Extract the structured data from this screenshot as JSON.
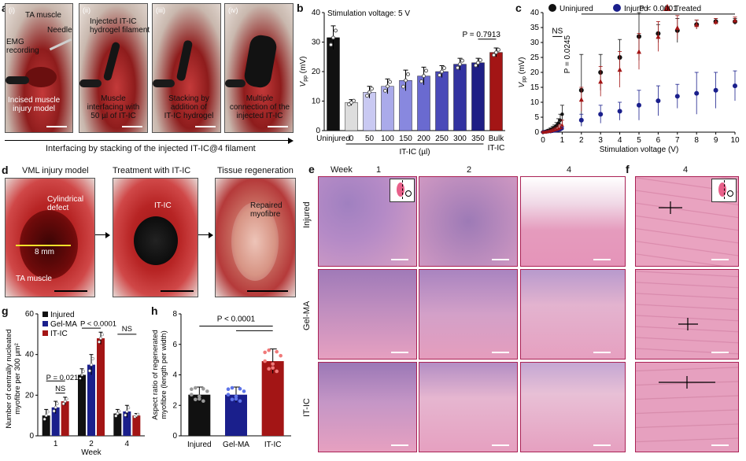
{
  "panel_letters": [
    "a",
    "b",
    "c",
    "d",
    "e",
    "f",
    "g",
    "h"
  ],
  "panel_a": {
    "stage_numerals": [
      "(i)",
      "(ii)",
      "(iii)",
      "(iv)"
    ],
    "labels": {
      "ta_muscle": "TA muscle",
      "needle": "Needle",
      "emg": "EMG\nrecording",
      "incised": "Incised muscle\ninjury model",
      "injected": "Injected IT-IC\nhydrogel filament",
      "interfacing": "Muscle\ninterfacing with\n50 µl of IT-IC",
      "stacking": "Stacking by\naddition of\nIT-IC hydrogel",
      "multiple": "Multiple\nconnection of the\ninjected IT-IC"
    },
    "caption": "Interfacing by stacking of the injected IT-IC@4 filament"
  },
  "panel_d": {
    "titles": [
      "VML injury model",
      "Treatment with IT-IC",
      "Tissue regeneration"
    ],
    "labels": {
      "cyl": "Cylindrical\ndefect",
      "mm": "8 mm",
      "ta": "TA muscle",
      "itic": "IT-IC",
      "rep": "Repaired\nmyofibre"
    }
  },
  "panel_e": {
    "week_label": "Week",
    "weeks": [
      "1",
      "2",
      "4"
    ],
    "rows": [
      "Injured",
      "Gel-MA",
      "IT-IC"
    ]
  },
  "panel_f": {
    "week": "4"
  },
  "colors": {
    "black": "#111111",
    "navy": "#1a1f8c",
    "red": "#a31515",
    "pink": "#e9a5b8",
    "he_pink": "#e6a0c0",
    "he_purple": "#9a74b6"
  },
  "chart_data": [
    {
      "panel": "b",
      "type": "bar",
      "annotation": "Stimulation voltage: 5 V",
      "ylabel": "V_pp (mV)",
      "ylabel_main": "V",
      "ylabel_sub": "pp",
      "ylabel_unit": " (mV)",
      "ylim": [
        0,
        40
      ],
      "yticks": [
        0,
        10,
        20,
        30,
        40
      ],
      "xlabel": "IT-IC (µl)",
      "xlabel_right": "IT-IC",
      "categories": [
        "Uninjured",
        "0",
        "50",
        "100",
        "150",
        "200",
        "250",
        "300",
        "350",
        "Bulk"
      ],
      "values": [
        31.5,
        9.5,
        13,
        15,
        17,
        18.5,
        20,
        22.5,
        23,
        26.5
      ],
      "errors": [
        4,
        1,
        2,
        2.5,
        3.5,
        3,
        2,
        2,
        1.5,
        1.5
      ],
      "colors": [
        "#111111",
        "#dddddd",
        "#c9c9f2",
        "#aaaaea",
        "#8888df",
        "#6a6ad0",
        "#4a4ab8",
        "#3333a0",
        "#1f1f85",
        "#a31515"
      ],
      "p_label": "P = 0.7913"
    },
    {
      "panel": "c",
      "type": "scatter",
      "xlabel": "Stimulation voltage (V)",
      "ylabel": "V_pp (mV)",
      "ylabel_main": "V",
      "ylabel_sub": "pp",
      "ylabel_unit": " (mV)",
      "xticks": [
        0,
        1,
        2,
        3,
        4,
        5,
        6,
        7,
        8,
        9,
        10
      ],
      "yticks": [
        0,
        5,
        10,
        15,
        20,
        25,
        30,
        35,
        40
      ],
      "ylim": [
        0,
        40
      ],
      "xlim": [
        0,
        10
      ],
      "x": [
        0,
        0.1,
        0.2,
        0.3,
        0.4,
        0.5,
        0.6,
        0.7,
        0.8,
        0.9,
        1,
        2,
        3,
        4,
        5,
        6,
        7,
        8,
        9,
        10
      ],
      "series": [
        {
          "name": "Uninjured",
          "color": "#111111",
          "marker": "circle",
          "values": [
            0.1,
            0.2,
            0.4,
            0.6,
            0.9,
            1.2,
            1.6,
            2.2,
            3,
            4,
            6,
            14,
            20,
            25,
            32,
            33,
            34,
            36,
            37,
            37
          ],
          "errors": [
            0.1,
            0.2,
            0.3,
            0.4,
            0.5,
            0.7,
            0.8,
            1,
            1.5,
            2,
            3,
            12,
            6,
            6,
            8,
            3,
            4,
            1.5,
            1,
            1
          ]
        },
        {
          "name": "Injured",
          "color": "#1a1f8c",
          "marker": "circle",
          "values": [
            0,
            0.1,
            0.1,
            0.2,
            0.2,
            0.3,
            0.4,
            0.5,
            0.6,
            0.8,
            1.2,
            4,
            6,
            7,
            9,
            10.5,
            12,
            13,
            14,
            15.5
          ],
          "errors": [
            0,
            0.1,
            0.1,
            0.1,
            0.2,
            0.2,
            0.3,
            0.3,
            0.4,
            0.5,
            0.6,
            2,
            3,
            3,
            5,
            5,
            4,
            7,
            6,
            5
          ]
        },
        {
          "name": "Treated",
          "color": "#a31515",
          "marker": "triangle",
          "values": [
            0.1,
            0.1,
            0.2,
            0.3,
            0.4,
            0.6,
            0.8,
            1,
            1.3,
            1.6,
            2.5,
            11,
            17,
            21,
            27,
            32,
            35,
            36,
            37,
            37.5
          ],
          "errors": [
            0.1,
            0.1,
            0.2,
            0.2,
            0.3,
            0.4,
            0.5,
            0.6,
            0.8,
            1,
            1.5,
            4,
            5,
            6,
            6,
            5,
            4,
            1.5,
            1,
            1
          ]
        }
      ],
      "annotations": [
        "NS",
        "P = 0.0245",
        "P < 0.0001"
      ]
    },
    {
      "panel": "g",
      "type": "bar",
      "ylabel": "Number of centrally nucleated\nmyofibre per 300 µm²",
      "xlabel": "Week",
      "categories": [
        "1",
        "2",
        "4"
      ],
      "ylim": [
        0,
        60
      ],
      "yticks": [
        0,
        20,
        40,
        60
      ],
      "series": [
        {
          "name": "Injured",
          "color": "#111111",
          "values": [
            10,
            30,
            11
          ],
          "errors": [
            3,
            3,
            2
          ]
        },
        {
          "name": "Gel-MA",
          "color": "#1a1f8c",
          "values": [
            14,
            35,
            12
          ],
          "errors": [
            3,
            5,
            3
          ]
        },
        {
          "name": "IT-IC",
          "color": "#a31515",
          "values": [
            17,
            48,
            10
          ],
          "errors": [
            2,
            3,
            1
          ]
        }
      ],
      "annotations": [
        "P = 0.0215",
        "NS",
        "P < 0.0001",
        "NS"
      ]
    },
    {
      "panel": "h",
      "type": "bar",
      "ylabel": "Aspect ratio of regenerated\nmyofibre (length per width)",
      "categories": [
        "Injured",
        "Gel-MA",
        "IT-IC"
      ],
      "values": [
        2.7,
        2.7,
        4.9
      ],
      "errors": [
        0.5,
        0.5,
        0.8
      ],
      "colors": [
        "#111111",
        "#1a1f8c",
        "#a31515"
      ],
      "ylim": [
        0,
        8
      ],
      "yticks": [
        0,
        2,
        4,
        6,
        8
      ],
      "p_label": "P < 0.0001"
    }
  ]
}
